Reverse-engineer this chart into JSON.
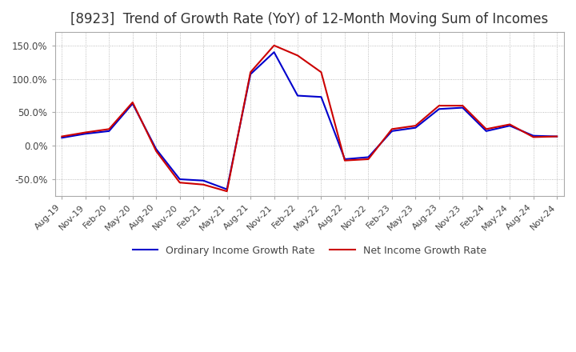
{
  "title": "[8923]  Trend of Growth Rate (YoY) of 12-Month Moving Sum of Incomes",
  "title_fontsize": 12,
  "ylim": [
    -75,
    170
  ],
  "yticks": [
    -50,
    0,
    50,
    100,
    150
  ],
  "ytick_labels": [
    "-50.0%",
    "0.0%",
    "50.0%",
    "100.0%",
    "150.0%"
  ],
  "background_color": "#ffffff",
  "grid_color": "#aaaaaa",
  "ordinary_color": "#0000cc",
  "net_color": "#cc0000",
  "legend_ordinary": "Ordinary Income Growth Rate",
  "legend_net": "Net Income Growth Rate",
  "x_labels": [
    "Aug-19",
    "Nov-19",
    "Feb-20",
    "May-20",
    "Aug-20",
    "Nov-20",
    "Feb-21",
    "May-21",
    "Aug-21",
    "Nov-21",
    "Feb-22",
    "May-22",
    "Aug-22",
    "Nov-22",
    "Feb-23",
    "May-23",
    "Aug-23",
    "Nov-23",
    "Feb-24",
    "May-24",
    "Aug-24",
    "Nov-24"
  ],
  "ordinary_income": [
    12,
    18,
    22,
    63,
    -5,
    -50,
    -52,
    -65,
    107,
    140,
    75,
    73,
    -20,
    -17,
    22,
    27,
    55,
    57,
    22,
    30,
    15,
    14
  ],
  "net_income": [
    14,
    20,
    25,
    65,
    -8,
    -55,
    -58,
    -68,
    110,
    150,
    135,
    110,
    -22,
    -20,
    25,
    30,
    60,
    60,
    25,
    32,
    13,
    14
  ]
}
